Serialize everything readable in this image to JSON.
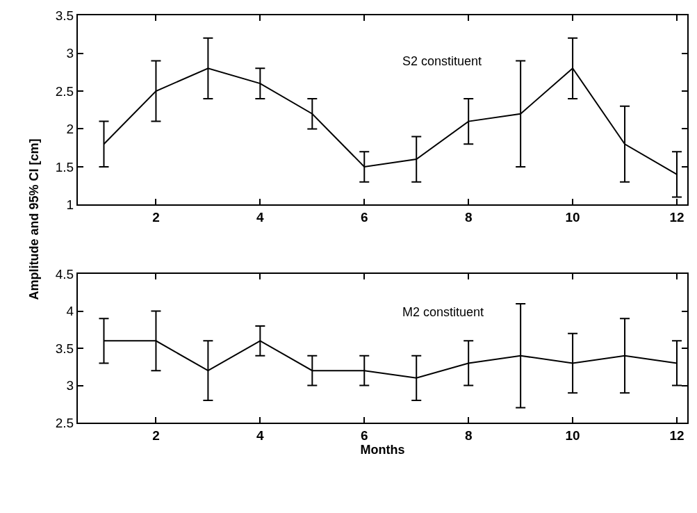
{
  "chart_data": [
    {
      "type": "line",
      "ylabel": "Amplitude and 95% CI [cm]",
      "annotations": [
        "S2 constituent"
      ],
      "x": [
        1,
        2,
        3,
        4,
        5,
        6,
        7,
        8,
        9,
        10,
        11,
        12
      ],
      "series": [
        {
          "color": "#000000",
          "values": [
            1.8,
            2.5,
            2.8,
            2.6,
            2.2,
            1.5,
            1.6,
            2.1,
            2.2,
            2.8,
            1.8,
            1.4
          ],
          "errors": [
            [
              1.5,
              2.1
            ],
            [
              2.1,
              2.9
            ],
            [
              2.4,
              3.2
            ],
            [
              2.4,
              2.8
            ],
            [
              2.0,
              2.4
            ],
            [
              1.3,
              1.7
            ],
            [
              1.3,
              1.9
            ],
            [
              1.8,
              2.4
            ],
            [
              1.5,
              2.9
            ],
            [
              2.4,
              3.2
            ],
            [
              1.3,
              2.3
            ],
            [
              1.1,
              1.7
            ]
          ]
        }
      ],
      "xlim": [
        0.5,
        12.2
      ],
      "ylim": [
        1,
        3.5
      ],
      "xticks": [
        2,
        4,
        6,
        8,
        10,
        12
      ],
      "yticks": [
        1,
        1.5,
        2,
        2.5,
        3,
        3.5
      ],
      "marker": "none",
      "line_style": "solid"
    },
    {
      "type": "line",
      "xlabel": "Months",
      "annotations": [
        "M2 constituent"
      ],
      "x": [
        1,
        2,
        3,
        4,
        5,
        6,
        7,
        8,
        9,
        10,
        11,
        12
      ],
      "series": [
        {
          "color": "#000000",
          "values": [
            3.6,
            3.6,
            3.2,
            3.6,
            3.2,
            3.2,
            3.1,
            3.3,
            3.4,
            3.3,
            3.4,
            3.3
          ],
          "errors": [
            [
              3.3,
              3.9
            ],
            [
              3.2,
              4.0
            ],
            [
              2.8,
              3.6
            ],
            [
              3.4,
              3.8
            ],
            [
              3.0,
              3.4
            ],
            [
              3.0,
              3.4
            ],
            [
              2.8,
              3.4
            ],
            [
              3.0,
              3.6
            ],
            [
              2.7,
              4.1
            ],
            [
              2.9,
              3.7
            ],
            [
              2.9,
              3.9
            ],
            [
              3.0,
              3.6
            ]
          ]
        }
      ],
      "xlim": [
        0.5,
        12.2
      ],
      "ylim": [
        2.5,
        4.5
      ],
      "xticks": [
        2,
        4,
        6,
        8,
        10,
        12
      ],
      "yticks": [
        2.5,
        3,
        3.5,
        4,
        4.5
      ],
      "marker": "none",
      "line_style": "solid"
    }
  ]
}
